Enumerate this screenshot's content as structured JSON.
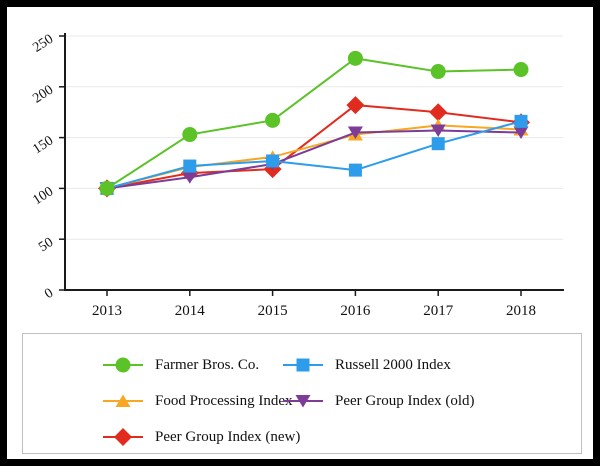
{
  "window": {
    "background": "#ffffff",
    "frame_color": "#000000"
  },
  "chart_data": {
    "type": "line",
    "x": [
      "2013",
      "2014",
      "2015",
      "2016",
      "2017",
      "2018"
    ],
    "ylim": [
      0,
      250
    ],
    "yticks": [
      0,
      50,
      100,
      150,
      200,
      250
    ],
    "grid": true,
    "legend_position": "bottom",
    "series": [
      {
        "name": "Farmer Bros. Co.",
        "marker": "circle",
        "color": "#5bc227",
        "values": [
          100,
          153,
          167,
          228,
          215,
          217
        ]
      },
      {
        "name": "Russell 2000 Index",
        "marker": "square",
        "color": "#2d9ceb",
        "values": [
          100,
          122,
          127,
          118,
          144,
          166
        ]
      },
      {
        "name": "Food Processing Index",
        "marker": "triangle-up",
        "color": "#f8a722",
        "values": [
          100,
          121,
          131,
          153,
          162,
          158
        ]
      },
      {
        "name": "Peer Group Index (old)",
        "marker": "triangle-down",
        "color": "#7d3c98",
        "values": [
          100,
          111,
          124,
          155,
          157,
          155
        ]
      },
      {
        "name": "Peer Group Index (new)",
        "marker": "diamond",
        "color": "#e12b1f",
        "values": [
          100,
          115,
          119,
          182,
          175,
          165
        ]
      }
    ]
  },
  "colors": {
    "gridline": "#e9e9e9",
    "axis": "#1a1a1a",
    "legend_border": "#c0c0c0",
    "tick_label": "#111111"
  }
}
